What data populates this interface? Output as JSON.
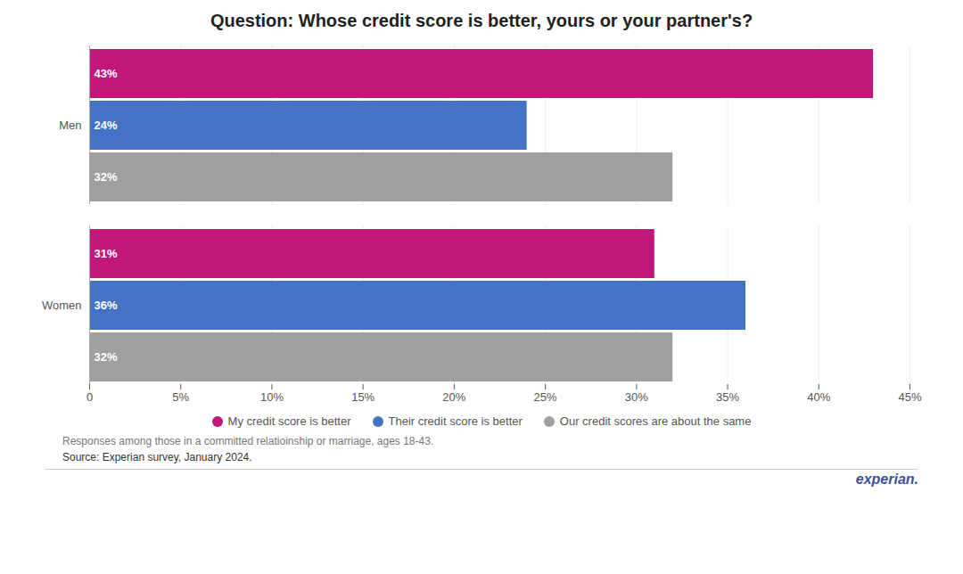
{
  "chart_data": {
    "type": "bar",
    "orientation": "horizontal",
    "title": "Question: Whose credit score is better, yours or your partner's?",
    "categories": [
      "Men",
      "Women"
    ],
    "series": [
      {
        "name": "My credit score is better",
        "color": "#c0177a",
        "values": [
          43,
          31
        ],
        "value_labels": [
          "43%",
          "31%"
        ]
      },
      {
        "name": "Their credit score is better",
        "color": "#4472c4",
        "values": [
          24,
          36
        ],
        "value_labels": [
          "24%",
          "36%"
        ]
      },
      {
        "name": "Our credit scores are about the same",
        "color": "#a0a0a0",
        "values": [
          32,
          32
        ],
        "value_labels": [
          "32%",
          "32%"
        ]
      }
    ],
    "xlim": [
      0,
      45
    ],
    "xticks": [
      0,
      {
        "value": 5,
        "label": "5%"
      },
      {
        "value": 10,
        "label": "10%"
      },
      {
        "value": 15,
        "label": "15%"
      },
      {
        "value": 20,
        "label": "20%"
      },
      {
        "value": 25,
        "label": "25%"
      },
      {
        "value": 30,
        "label": "30%"
      },
      {
        "value": 35,
        "label": "35%"
      },
      {
        "value": 40,
        "label": "40%"
      },
      {
        "value": 45,
        "label": "45%"
      }
    ],
    "grid": true,
    "legend": "bottom",
    "data_labels": true,
    "annotations": [
      "Responses among those in a committed relatioinship or marriage, ages 18-43.",
      "Source: Experian survey, January 2024.",
      "experian."
    ]
  }
}
